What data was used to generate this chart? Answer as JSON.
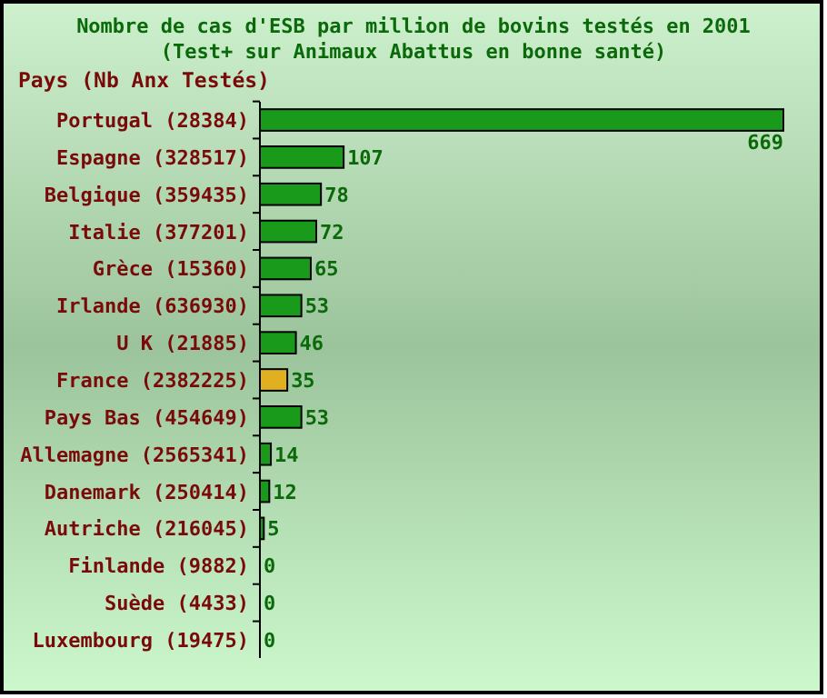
{
  "chart_data": {
    "type": "bar",
    "orientation": "horizontal",
    "title": "Nombre de cas d'ESB par million de bovins testés en 2001",
    "subtitle": "(Test+ sur Animaux Abattus en bonne santé)",
    "ylabel": "Pays (Nb Anx Testés)",
    "categories": [
      "Portugal (28384)",
      "Espagne (328517)",
      "Belgique (359435)",
      "Italie (377201)",
      "Grèce (15360)",
      "Irlande (636930)",
      "U K (21885)",
      "France (2382225)",
      "Pays Bas (454649)",
      "Allemagne (2565341)",
      "Danemark (250414)",
      "Autriche (216045)",
      "Finlande (9882)",
      "Suède (4433)",
      "Luxembourg (19475)"
    ],
    "values": [
      669,
      107,
      78,
      72,
      65,
      53,
      46,
      35,
      53,
      14,
      12,
      5,
      0,
      0,
      0
    ],
    "colors": [
      "#1a9a1a",
      "#1a9a1a",
      "#1a9a1a",
      "#1a9a1a",
      "#1a9a1a",
      "#1a9a1a",
      "#1a9a1a",
      "#e0b020",
      "#1a9a1a",
      "#1a9a1a",
      "#1a9a1a",
      "#1a9a1a",
      "#1a9a1a",
      "#1a9a1a",
      "#1a9a1a"
    ],
    "data_labels": true
  }
}
